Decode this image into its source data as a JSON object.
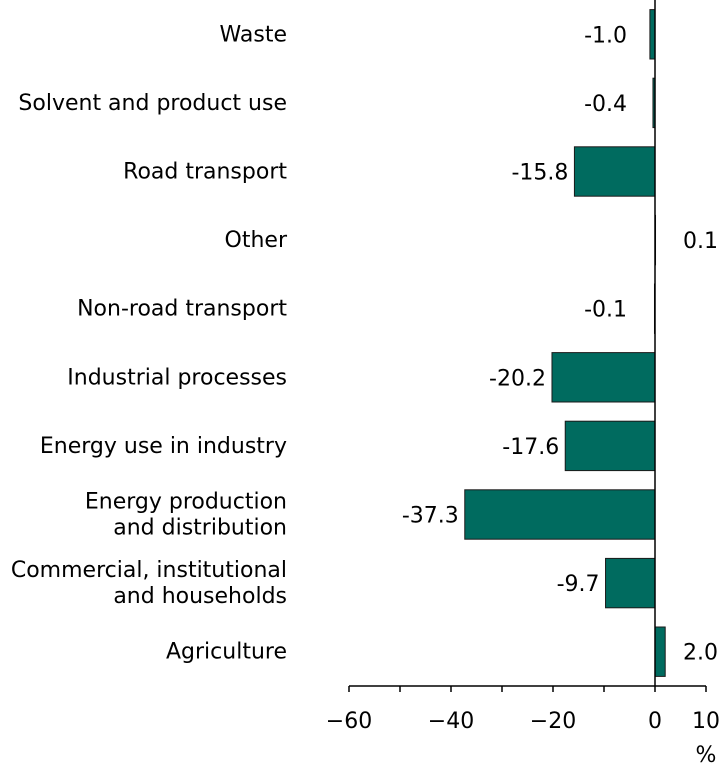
{
  "chart_data": {
    "type": "bar",
    "orientation": "horizontal",
    "categories": [
      [
        "Waste"
      ],
      [
        "Solvent and product use"
      ],
      [
        "Road transport"
      ],
      [
        "Other"
      ],
      [
        "Non-road transport"
      ],
      [
        "Industrial processes"
      ],
      [
        "Energy use in industry"
      ],
      [
        "Energy production",
        "and distribution"
      ],
      [
        "Commercial, institutional",
        "and households"
      ],
      [
        "Agriculture"
      ]
    ],
    "values": [
      -1.0,
      -0.4,
      -15.8,
      0.1,
      -0.1,
      -20.2,
      -17.6,
      -37.3,
      -9.7,
      2.0
    ],
    "value_labels": [
      "-1.0",
      "-0.4",
      "-15.8",
      "0.1",
      "-0.1",
      "-20.2",
      "-17.6",
      "-37.3",
      "-9.7",
      "2.0"
    ],
    "xlim": [
      -60,
      10
    ],
    "xticks": [
      -60,
      -50,
      -40,
      -30,
      -20,
      -10,
      0,
      10
    ],
    "xtick_labels": [
      "−60",
      "",
      "−40",
      "",
      "−20",
      "",
      "0",
      "10"
    ],
    "xlabel": "%",
    "title": "",
    "grid": false,
    "legend": "none",
    "bar_color": "#006b5f",
    "bar_edge_color": "#1a1a1a"
  }
}
